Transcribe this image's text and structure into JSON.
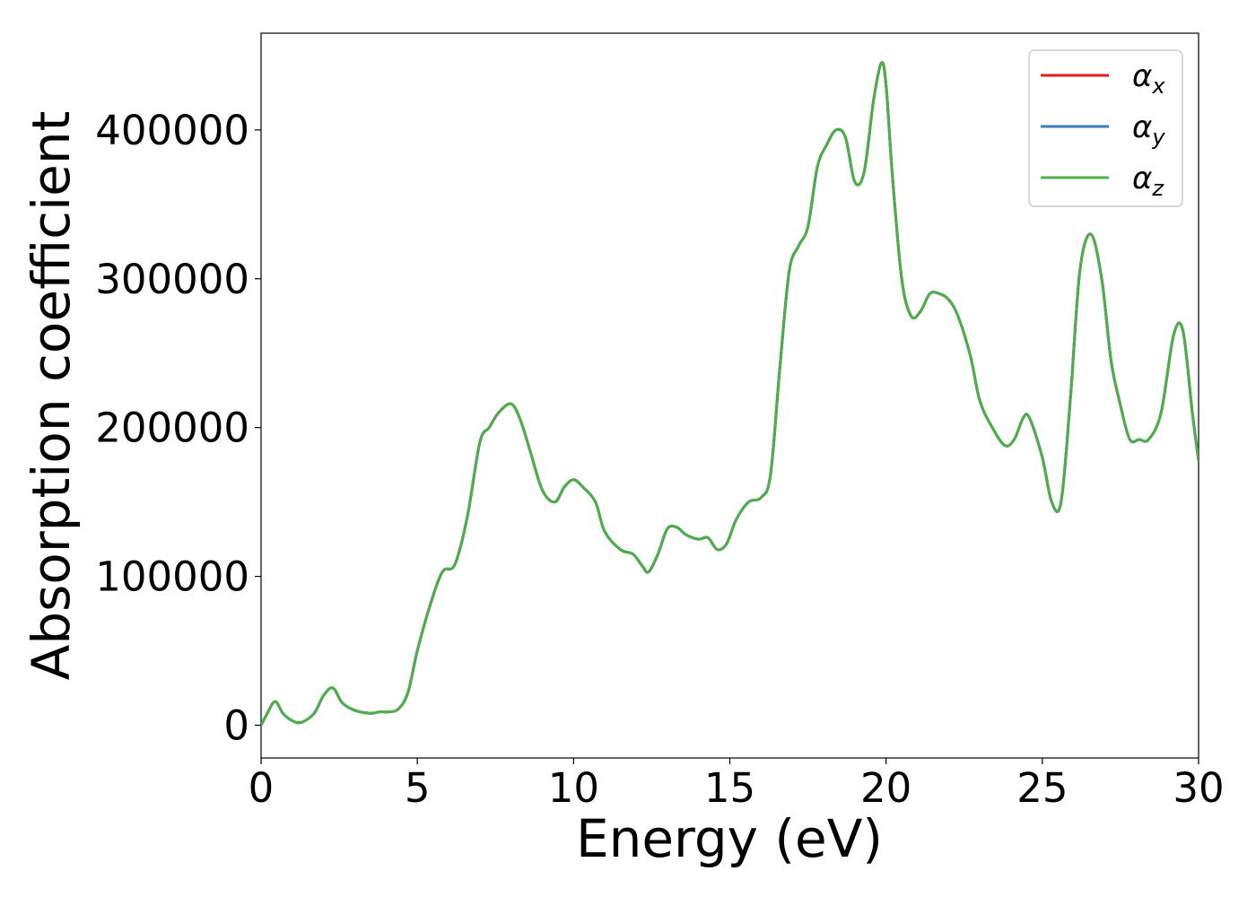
{
  "chart_data": {
    "type": "line",
    "title": "",
    "xlabel": "Energy (eV)",
    "ylabel": "Absorption coefficient",
    "xlim": [
      0,
      30
    ],
    "ylim": [
      -22000,
      465000
    ],
    "xticks": [
      0,
      5,
      10,
      15,
      20,
      25,
      30
    ],
    "yticks": [
      0,
      100000,
      200000,
      300000,
      400000
    ],
    "grid": false,
    "legend_position": "top-right",
    "colors": {
      "alpha_x": "#e41a1c",
      "alpha_y": "#377eb8",
      "alpha_z": "#4daf4a"
    },
    "series": [
      {
        "name": "αx",
        "symbol": "α",
        "subscript": "x",
        "color": "#e41a1c"
      },
      {
        "name": "αy",
        "symbol": "α",
        "subscript": "y",
        "color": "#377eb8"
      },
      {
        "name": "αz",
        "symbol": "α",
        "subscript": "z",
        "color": "#4daf4a"
      }
    ],
    "x": [
      0,
      0.2,
      0.45,
      0.7,
      1.0,
      1.3,
      1.7,
      2.0,
      2.3,
      2.6,
      3.0,
      3.5,
      3.8,
      4.1,
      4.4,
      4.7,
      5.0,
      5.4,
      5.8,
      6.2,
      6.6,
      7.0,
      7.3,
      7.6,
      8.0,
      8.3,
      8.6,
      9.0,
      9.4,
      9.7,
      10.0,
      10.3,
      10.7,
      11.0,
      11.5,
      11.9,
      12.2,
      12.4,
      12.7,
      13.0,
      13.3,
      13.6,
      14.0,
      14.3,
      14.6,
      14.9,
      15.2,
      15.6,
      16.0,
      16.3,
      16.6,
      16.9,
      17.2,
      17.5,
      17.8,
      18.1,
      18.4,
      18.7,
      19.0,
      19.3,
      19.6,
      19.85,
      20.0,
      20.2,
      20.5,
      20.8,
      21.1,
      21.4,
      21.7,
      22.0,
      22.3,
      22.7,
      23.0,
      23.4,
      23.8,
      24.1,
      24.4,
      24.6,
      25.0,
      25.3,
      25.6,
      25.9,
      26.2,
      26.55,
      26.9,
      27.2,
      27.5,
      27.8,
      28.1,
      28.4,
      28.8,
      29.2,
      29.5,
      29.8,
      30.0
    ],
    "values": [
      0,
      8000,
      16000,
      8000,
      3000,
      2000,
      8000,
      20000,
      25000,
      15000,
      10000,
      8000,
      9000,
      9000,
      11000,
      22000,
      50000,
      80000,
      103000,
      108000,
      140000,
      190000,
      200000,
      210000,
      216000,
      205000,
      185000,
      158000,
      150000,
      160000,
      165000,
      160000,
      150000,
      130000,
      118000,
      115000,
      107000,
      103000,
      115000,
      132000,
      133000,
      128000,
      125000,
      126000,
      118000,
      122000,
      138000,
      150000,
      153000,
      168000,
      240000,
      305000,
      322000,
      335000,
      375000,
      390000,
      400000,
      395000,
      365000,
      372000,
      420000,
      445000,
      430000,
      370000,
      300000,
      275000,
      278000,
      290000,
      290000,
      286000,
      275000,
      248000,
      218000,
      200000,
      188000,
      192000,
      207000,
      206000,
      180000,
      150000,
      150000,
      220000,
      305000,
      330000,
      300000,
      245000,
      215000,
      192000,
      192000,
      192000,
      210000,
      262000,
      265000,
      210000,
      178000
    ]
  }
}
